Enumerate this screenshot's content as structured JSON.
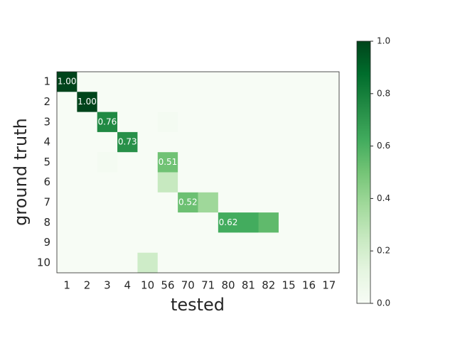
{
  "chart_data": {
    "type": "heatmap",
    "colormap": "Greens",
    "xlabel": "tested",
    "ylabel": "ground truth",
    "x_categories": [
      "1",
      "2",
      "3",
      "4",
      "10",
      "56",
      "70",
      "71",
      "80",
      "81",
      "82",
      "15",
      "16",
      "17"
    ],
    "y_categories": [
      "1",
      "2",
      "3",
      "4",
      "5",
      "6",
      "7",
      "8",
      "9",
      "10"
    ],
    "values": [
      [
        1,
        0,
        0,
        0,
        0,
        0,
        0,
        0,
        0,
        0,
        0,
        0,
        0,
        0
      ],
      [
        0,
        1,
        0,
        0,
        0,
        0,
        0,
        0,
        0,
        0,
        0,
        0,
        0,
        0
      ],
      [
        0,
        0,
        0.76,
        0,
        0,
        0.02,
        0,
        0,
        0,
        0,
        0,
        0,
        0,
        0
      ],
      [
        0,
        0,
        0,
        0.73,
        0,
        0,
        0,
        0,
        0,
        0,
        0,
        0,
        0,
        0
      ],
      [
        0,
        0,
        0.02,
        0,
        0,
        0.51,
        0,
        0,
        0,
        0,
        0,
        0,
        0,
        0
      ],
      [
        0,
        0,
        0,
        0,
        0,
        0.25,
        0,
        0,
        0,
        0,
        0,
        0,
        0,
        0
      ],
      [
        0,
        0,
        0,
        0,
        0,
        0,
        0.52,
        0.38,
        0,
        0,
        0,
        0,
        0,
        0
      ],
      [
        0,
        0,
        0,
        0,
        0,
        0,
        0,
        0,
        0.62,
        0.62,
        0.55,
        0,
        0,
        0
      ],
      [
        0,
        0,
        0,
        0,
        0,
        0,
        0,
        0,
        0,
        0,
        0,
        0,
        0,
        0
      ],
      [
        0,
        0,
        0,
        0,
        0.22,
        0,
        0,
        0,
        0,
        0,
        0,
        0,
        0,
        0
      ]
    ],
    "value_labels": [
      [
        "1.00",
        null,
        null,
        null,
        null,
        null,
        null,
        null,
        null,
        null,
        null,
        null,
        null,
        null
      ],
      [
        null,
        "1.00",
        null,
        null,
        null,
        null,
        null,
        null,
        null,
        null,
        null,
        null,
        null,
        null
      ],
      [
        null,
        null,
        "0.76",
        null,
        null,
        null,
        null,
        null,
        null,
        null,
        null,
        null,
        null,
        null
      ],
      [
        null,
        null,
        null,
        "0.73",
        null,
        null,
        null,
        null,
        null,
        null,
        null,
        null,
        null,
        null
      ],
      [
        null,
        null,
        null,
        null,
        null,
        "0.51",
        null,
        null,
        null,
        null,
        null,
        null,
        null,
        null
      ],
      [
        null,
        null,
        null,
        null,
        null,
        null,
        null,
        null,
        null,
        null,
        null,
        null,
        null,
        null
      ],
      [
        null,
        null,
        null,
        null,
        null,
        null,
        "0.52",
        null,
        null,
        null,
        null,
        null,
        null,
        null
      ],
      [
        null,
        null,
        null,
        null,
        null,
        null,
        null,
        null,
        "0.62",
        null,
        null,
        null,
        null,
        null
      ],
      [
        null,
        null,
        null,
        null,
        null,
        null,
        null,
        null,
        null,
        null,
        null,
        null,
        null,
        null
      ],
      [
        null,
        null,
        null,
        null,
        null,
        null,
        null,
        null,
        null,
        null,
        null,
        null,
        null,
        null
      ]
    ],
    "clim": [
      0,
      1
    ],
    "cticks": [
      {
        "value": 0,
        "label": "0.0"
      },
      0.2,
      0.4,
      0.6,
      0.8,
      {
        "value": 1,
        "label": "1.0"
      }
    ]
  }
}
